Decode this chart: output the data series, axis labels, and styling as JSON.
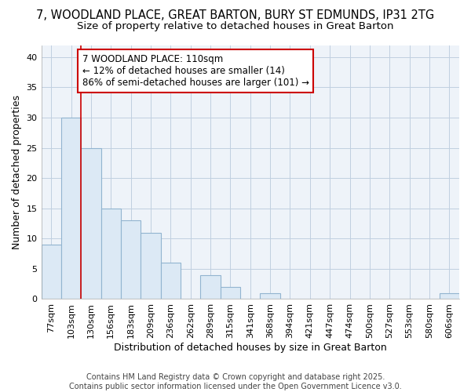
{
  "title_line1": "7, WOODLAND PLACE, GREAT BARTON, BURY ST EDMUNDS, IP31 2TG",
  "title_line2": "Size of property relative to detached houses in Great Barton",
  "xlabel": "Distribution of detached houses by size in Great Barton",
  "ylabel": "Number of detached properties",
  "categories": [
    "77sqm",
    "103sqm",
    "130sqm",
    "156sqm",
    "183sqm",
    "209sqm",
    "236sqm",
    "262sqm",
    "289sqm",
    "315sqm",
    "341sqm",
    "368sqm",
    "394sqm",
    "421sqm",
    "447sqm",
    "474sqm",
    "500sqm",
    "527sqm",
    "553sqm",
    "580sqm",
    "606sqm"
  ],
  "values": [
    9,
    30,
    25,
    15,
    13,
    11,
    6,
    0,
    4,
    2,
    0,
    1,
    0,
    0,
    0,
    0,
    0,
    0,
    0,
    0,
    1
  ],
  "bar_color": "#dce9f5",
  "bar_edge_color": "#92b4d0",
  "vline_color": "#cc0000",
  "annotation_text": "7 WOODLAND PLACE: 110sqm\n← 12% of detached houses are smaller (14)\n86% of semi-detached houses are larger (101) →",
  "annotation_box_color": "#ffffff",
  "annotation_box_edge": "#cc0000",
  "ylim": [
    0,
    42
  ],
  "yticks": [
    0,
    5,
    10,
    15,
    20,
    25,
    30,
    35,
    40
  ],
  "grid_color": "#c0cfe0",
  "bg_color": "#ffffff",
  "plot_bg_color": "#eef3f9",
  "footer_text": "Contains HM Land Registry data © Crown copyright and database right 2025.\nContains public sector information licensed under the Open Government Licence v3.0.",
  "title_fontsize": 10.5,
  "subtitle_fontsize": 9.5,
  "axis_label_fontsize": 9,
  "tick_fontsize": 8,
  "annotation_fontsize": 8.5,
  "footer_fontsize": 7
}
